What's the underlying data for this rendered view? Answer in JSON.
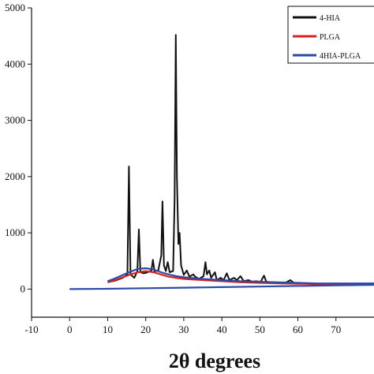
{
  "chart_data": {
    "type": "line",
    "xlabel": "2θ degrees",
    "ylabel": "",
    "xlim": [
      -10,
      80
    ],
    "ylim": [
      -500,
      5000
    ],
    "x_ticks": [
      -10,
      0,
      10,
      20,
      30,
      40,
      50,
      60,
      70
    ],
    "x_tick_labels": [
      "-10",
      "0",
      "10",
      "20",
      "30",
      "40",
      "50",
      "60",
      "70"
    ],
    "y_ticks": [
      0,
      1000,
      2000,
      3000,
      4000,
      5000
    ],
    "y_tick_labels": [
      "0",
      "1000",
      "2000",
      "3000",
      "4000",
      "5000"
    ],
    "grid": false,
    "legend_position": "top-right",
    "series": [
      {
        "name": "4-HIA",
        "color": "#111111",
        "points": [
          [
            10,
            120
          ],
          [
            12,
            150
          ],
          [
            14,
            200
          ],
          [
            15.2,
            260
          ],
          [
            15.6,
            2180
          ],
          [
            16.0,
            260
          ],
          [
            17,
            200
          ],
          [
            17.8,
            320
          ],
          [
            18.2,
            1060
          ],
          [
            18.6,
            300
          ],
          [
            19.5,
            280
          ],
          [
            20.5,
            300
          ],
          [
            21.5,
            330
          ],
          [
            21.9,
            520
          ],
          [
            22.3,
            320
          ],
          [
            23.3,
            330
          ],
          [
            23.8,
            500
          ],
          [
            24.1,
            600
          ],
          [
            24.4,
            1560
          ],
          [
            24.8,
            420
          ],
          [
            25.3,
            320
          ],
          [
            25.8,
            480
          ],
          [
            26.3,
            300
          ],
          [
            27.2,
            320
          ],
          [
            27.6,
            1600
          ],
          [
            27.9,
            4520
          ],
          [
            28.2,
            2000
          ],
          [
            28.6,
            800
          ],
          [
            28.9,
            1000
          ],
          [
            29.3,
            420
          ],
          [
            30,
            250
          ],
          [
            30.8,
            330
          ],
          [
            31.5,
            220
          ],
          [
            32.5,
            260
          ],
          [
            33,
            220
          ],
          [
            34,
            180
          ],
          [
            35.2,
            230
          ],
          [
            35.7,
            480
          ],
          [
            36.1,
            260
          ],
          [
            36.7,
            330
          ],
          [
            37.2,
            200
          ],
          [
            38.2,
            300
          ],
          [
            38.7,
            160
          ],
          [
            39.7,
            200
          ],
          [
            40.5,
            160
          ],
          [
            41.3,
            280
          ],
          [
            42,
            160
          ],
          [
            43.2,
            200
          ],
          [
            44,
            160
          ],
          [
            44.9,
            230
          ],
          [
            45.8,
            140
          ],
          [
            47,
            160
          ],
          [
            48,
            130
          ],
          [
            49,
            140
          ],
          [
            50.2,
            130
          ],
          [
            51.1,
            240
          ],
          [
            51.7,
            130
          ],
          [
            53,
            120
          ],
          [
            55,
            110
          ],
          [
            57,
            120
          ],
          [
            58,
            160
          ],
          [
            59,
            110
          ],
          [
            62,
            100
          ],
          [
            66,
            80
          ],
          [
            70,
            90
          ],
          [
            75,
            90
          ],
          [
            80,
            100
          ]
        ]
      },
      {
        "name": "PLGA",
        "color": "#e02020",
        "points": [
          [
            10,
            120
          ],
          [
            12,
            160
          ],
          [
            14,
            210
          ],
          [
            16,
            260
          ],
          [
            18,
            300
          ],
          [
            20,
            320
          ],
          [
            22,
            300
          ],
          [
            24,
            260
          ],
          [
            26,
            220
          ],
          [
            28,
            200
          ],
          [
            30,
            180
          ],
          [
            35,
            160
          ],
          [
            40,
            140
          ],
          [
            45,
            120
          ],
          [
            50,
            110
          ],
          [
            55,
            100
          ],
          [
            60,
            95
          ],
          [
            65,
            90
          ],
          [
            70,
            90
          ],
          [
            75,
            90
          ],
          [
            80,
            90
          ]
        ]
      },
      {
        "name": "4HIA-PLGA",
        "color": "#2a4aa8",
        "points": [
          [
            10,
            140
          ],
          [
            12,
            190
          ],
          [
            14,
            250
          ],
          [
            16,
            310
          ],
          [
            18,
            360
          ],
          [
            20,
            370
          ],
          [
            22,
            350
          ],
          [
            24,
            300
          ],
          [
            26,
            260
          ],
          [
            28,
            230
          ],
          [
            30,
            210
          ],
          [
            35,
            180
          ],
          [
            40,
            160
          ],
          [
            45,
            140
          ],
          [
            50,
            130
          ],
          [
            55,
            120
          ],
          [
            60,
            110
          ],
          [
            65,
            100
          ],
          [
            70,
            100
          ],
          [
            75,
            100
          ],
          [
            80,
            100
          ]
        ]
      },
      {
        "name": "",
        "color": "#2a4aa8",
        "points": [
          [
            0,
            0
          ],
          [
            10,
            5
          ],
          [
            20,
            15
          ],
          [
            30,
            25
          ],
          [
            40,
            35
          ],
          [
            50,
            45
          ],
          [
            60,
            55
          ],
          [
            70,
            65
          ],
          [
            80,
            75
          ]
        ]
      }
    ]
  }
}
